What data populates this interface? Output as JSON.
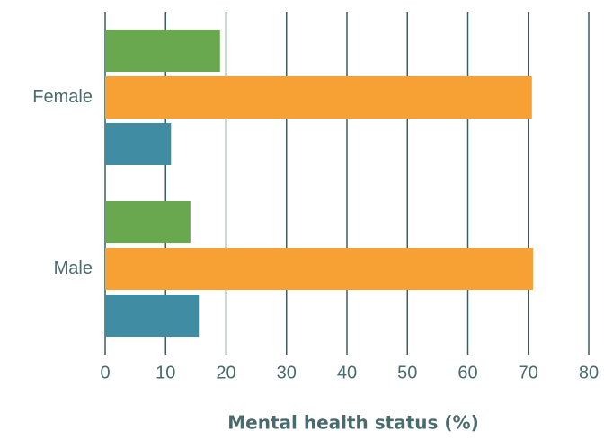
{
  "chart_data": {
    "type": "hbar",
    "categories": [
      "Female",
      "Male"
    ],
    "series": [
      {
        "color": "#6aa84f",
        "values": [
          19.0,
          14.1
        ]
      },
      {
        "color": "#f7a033",
        "values": [
          70.6,
          70.8
        ]
      },
      {
        "color": "#3f8ca3",
        "values": [
          10.9,
          15.5
        ]
      }
    ],
    "xlabel": "Mental health status (%)",
    "xlim": [
      0,
      80
    ],
    "xticks": [
      0,
      10,
      20,
      30,
      40,
      50,
      60,
      70,
      80
    ],
    "grid": true
  }
}
